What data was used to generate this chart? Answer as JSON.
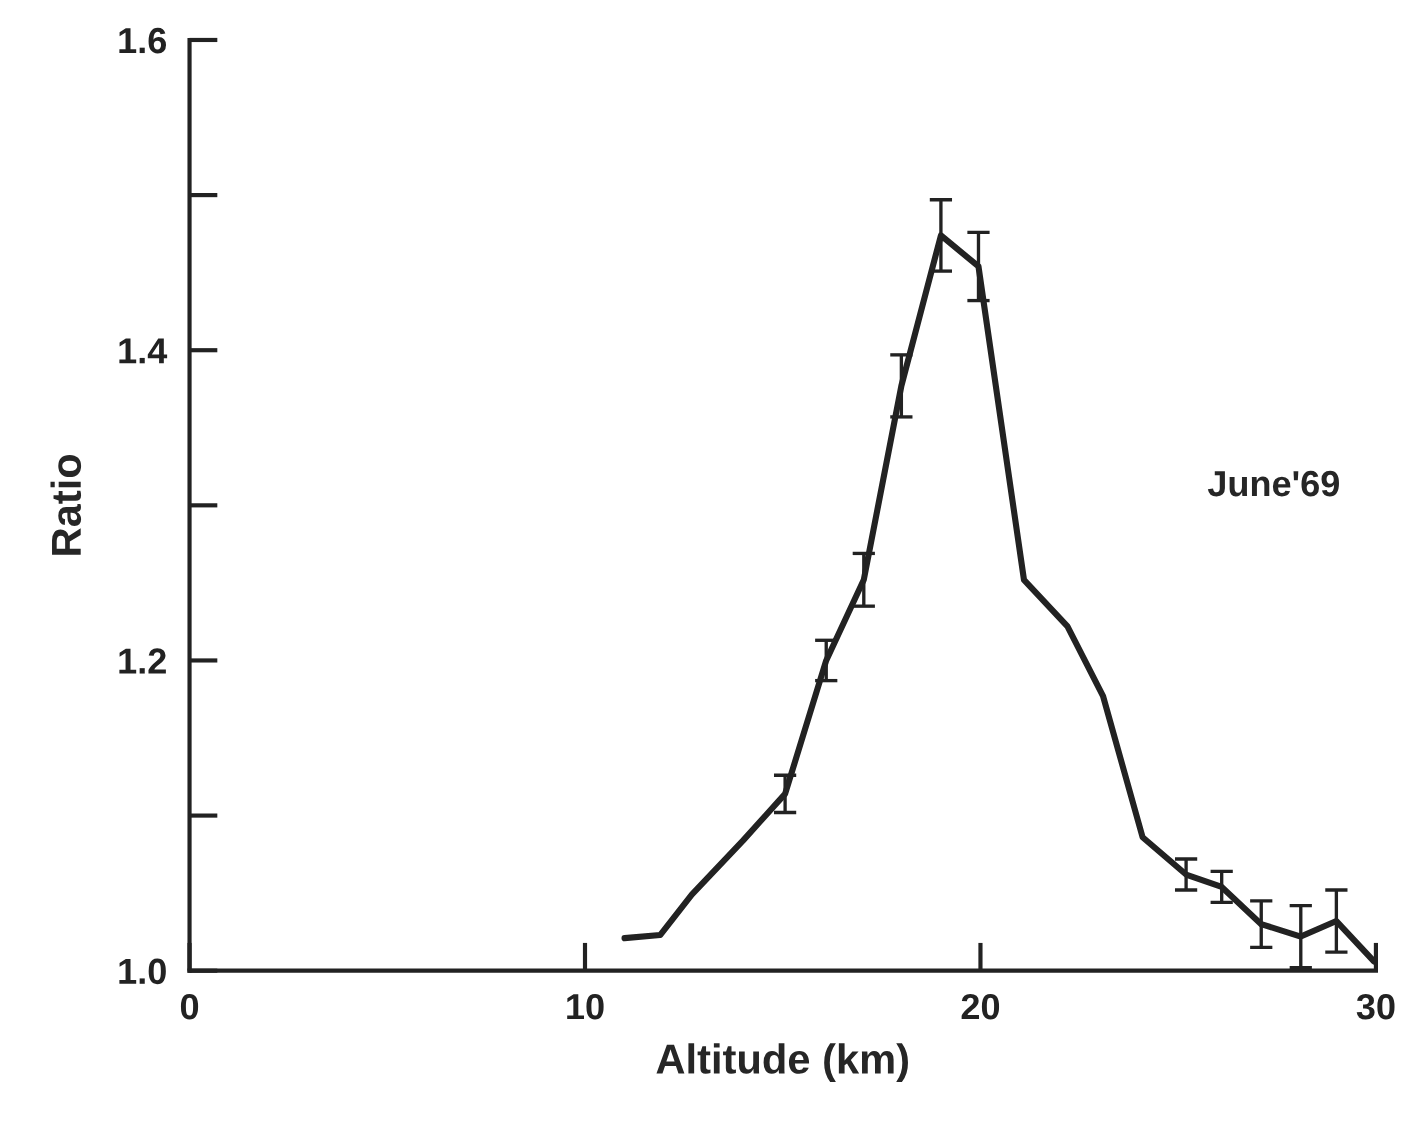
{
  "chart_data": {
    "type": "line",
    "xlabel": "Altitude (km)",
    "ylabel": "Ratio",
    "annotations": [
      "June'69"
    ],
    "xlim": [
      0,
      30
    ],
    "xticks": [
      0,
      10,
      20,
      30
    ],
    "ylim": [
      1.0,
      1.6
    ],
    "yticks": [
      {
        "value": 1.0,
        "label": "1.0"
      },
      {
        "value": 1.1,
        "label": null
      },
      {
        "value": 1.2,
        "label": "1.2"
      },
      {
        "value": 1.3,
        "label": null
      },
      {
        "value": 1.4,
        "label": "1.4"
      },
      {
        "value": 1.5,
        "label": null
      },
      {
        "value": 1.6,
        "label": "1.6"
      }
    ],
    "grid": false,
    "legend": false,
    "marker": "none",
    "line_style": "solid",
    "series": [
      {
        "color": "#222222",
        "x": [
          11.0,
          11.9,
          12.7,
          14.0,
          15.06,
          16.1,
          17.05,
          18.0,
          19.0,
          19.95,
          21.1,
          22.2,
          23.1,
          24.1,
          25.2,
          26.1,
          27.1,
          28.1,
          29.0,
          29.95
        ],
        "values": [
          1.021,
          1.023,
          1.049,
          1.084,
          1.114,
          1.2,
          1.252,
          1.377,
          1.474,
          1.454,
          1.252,
          1.222,
          1.177,
          1.086,
          1.062,
          1.054,
          1.03,
          1.022,
          1.032,
          1.006
        ],
        "errors": [
          null,
          null,
          null,
          null,
          0.012,
          0.013,
          0.017,
          0.02,
          0.023,
          0.022,
          null,
          null,
          null,
          null,
          0.01,
          0.01,
          0.015,
          0.02,
          0.02,
          null
        ]
      }
    ]
  }
}
